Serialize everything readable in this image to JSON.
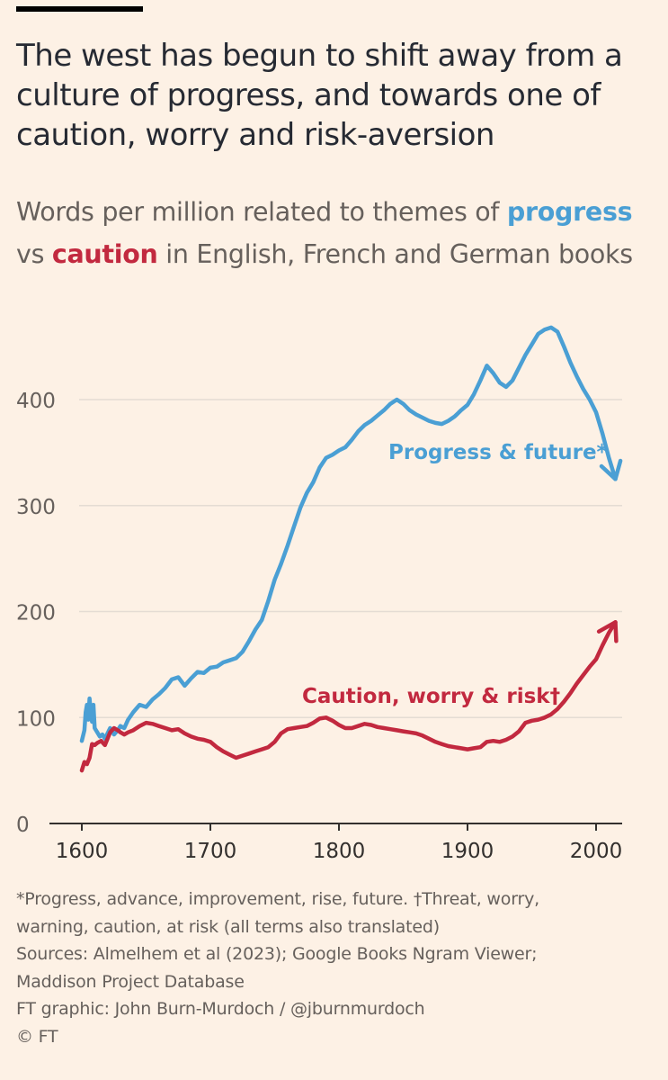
{
  "header": {
    "title": "The west has begun to shift away from a culture of progress, and towards one of caution, worry and risk-aversion",
    "subtitle_prefix": "Words per million related to themes of",
    "subtitle_progress": "progress",
    "subtitle_vs": "vs",
    "subtitle_caution": "caution",
    "subtitle_suffix": "in English, French and German books"
  },
  "colors": {
    "background": "#fdf1e5",
    "progress": "#4a9fd4",
    "caution": "#c2293f",
    "grid": "#e4dcd3",
    "axis": "#33302e",
    "tick_text": "#66605c"
  },
  "chart_data": {
    "type": "line",
    "xlim": [
      1600,
      2015
    ],
    "ylim": [
      0,
      470
    ],
    "x_ticks": [
      1600,
      1700,
      1800,
      1900,
      2000
    ],
    "y_ticks": [
      0,
      100,
      200,
      300,
      400
    ],
    "grid": "horizontal",
    "series": [
      {
        "name": "Progress & future*",
        "label_text": "Progress & future*",
        "color": "#4a9fd4",
        "points": [
          [
            1600,
            78
          ],
          [
            1602,
            88
          ],
          [
            1603,
            105
          ],
          [
            1604,
            112
          ],
          [
            1605,
            98
          ],
          [
            1606,
            118
          ],
          [
            1607,
            104
          ],
          [
            1608,
            96
          ],
          [
            1609,
            112
          ],
          [
            1610,
            90
          ],
          [
            1612,
            86
          ],
          [
            1614,
            82
          ],
          [
            1616,
            84
          ],
          [
            1618,
            80
          ],
          [
            1620,
            85
          ],
          [
            1622,
            90
          ],
          [
            1625,
            84
          ],
          [
            1628,
            88
          ],
          [
            1630,
            92
          ],
          [
            1633,
            90
          ],
          [
            1636,
            98
          ],
          [
            1640,
            105
          ],
          [
            1645,
            112
          ],
          [
            1650,
            110
          ],
          [
            1655,
            117
          ],
          [
            1660,
            122
          ],
          [
            1665,
            128
          ],
          [
            1670,
            136
          ],
          [
            1675,
            138
          ],
          [
            1680,
            130
          ],
          [
            1685,
            137
          ],
          [
            1690,
            143
          ],
          [
            1695,
            142
          ],
          [
            1700,
            147
          ],
          [
            1705,
            148
          ],
          [
            1710,
            152
          ],
          [
            1715,
            154
          ],
          [
            1720,
            156
          ],
          [
            1725,
            162
          ],
          [
            1730,
            172
          ],
          [
            1735,
            183
          ],
          [
            1740,
            192
          ],
          [
            1745,
            210
          ],
          [
            1750,
            230
          ],
          [
            1755,
            245
          ],
          [
            1760,
            262
          ],
          [
            1765,
            280
          ],
          [
            1770,
            298
          ],
          [
            1775,
            312
          ],
          [
            1780,
            322
          ],
          [
            1785,
            336
          ],
          [
            1790,
            345
          ],
          [
            1795,
            348
          ],
          [
            1800,
            352
          ],
          [
            1805,
            355
          ],
          [
            1810,
            362
          ],
          [
            1815,
            370
          ],
          [
            1820,
            376
          ],
          [
            1825,
            380
          ],
          [
            1830,
            385
          ],
          [
            1835,
            390
          ],
          [
            1840,
            396
          ],
          [
            1845,
            400
          ],
          [
            1850,
            396
          ],
          [
            1855,
            390
          ],
          [
            1860,
            386
          ],
          [
            1865,
            383
          ],
          [
            1870,
            380
          ],
          [
            1875,
            378
          ],
          [
            1880,
            377
          ],
          [
            1885,
            380
          ],
          [
            1890,
            384
          ],
          [
            1895,
            390
          ],
          [
            1900,
            395
          ],
          [
            1905,
            405
          ],
          [
            1910,
            418
          ],
          [
            1915,
            432
          ],
          [
            1920,
            425
          ],
          [
            1925,
            416
          ],
          [
            1930,
            412
          ],
          [
            1935,
            418
          ],
          [
            1940,
            430
          ],
          [
            1945,
            442
          ],
          [
            1950,
            452
          ],
          [
            1955,
            462
          ],
          [
            1960,
            466
          ],
          [
            1965,
            468
          ],
          [
            1970,
            464
          ],
          [
            1975,
            450
          ],
          [
            1980,
            435
          ],
          [
            1985,
            422
          ],
          [
            1990,
            410
          ],
          [
            1995,
            400
          ],
          [
            2000,
            388
          ],
          [
            2005,
            368
          ],
          [
            2010,
            345
          ],
          [
            2015,
            325
          ]
        ]
      },
      {
        "name": "Caution, worry & risk†",
        "label_text": "Caution, worry & risk†",
        "color": "#c2293f",
        "points": [
          [
            1600,
            50
          ],
          [
            1602,
            58
          ],
          [
            1604,
            56
          ],
          [
            1606,
            62
          ],
          [
            1608,
            75
          ],
          [
            1610,
            74
          ],
          [
            1612,
            76
          ],
          [
            1615,
            78
          ],
          [
            1618,
            74
          ],
          [
            1620,
            80
          ],
          [
            1622,
            86
          ],
          [
            1625,
            90
          ],
          [
            1628,
            88
          ],
          [
            1630,
            86
          ],
          [
            1633,
            84
          ],
          [
            1636,
            86
          ],
          [
            1640,
            88
          ],
          [
            1645,
            92
          ],
          [
            1650,
            95
          ],
          [
            1655,
            94
          ],
          [
            1660,
            92
          ],
          [
            1665,
            90
          ],
          [
            1670,
            88
          ],
          [
            1675,
            89
          ],
          [
            1680,
            85
          ],
          [
            1685,
            82
          ],
          [
            1690,
            80
          ],
          [
            1695,
            79
          ],
          [
            1700,
            77
          ],
          [
            1705,
            72
          ],
          [
            1710,
            68
          ],
          [
            1715,
            65
          ],
          [
            1720,
            62
          ],
          [
            1725,
            64
          ],
          [
            1730,
            66
          ],
          [
            1735,
            68
          ],
          [
            1740,
            70
          ],
          [
            1745,
            72
          ],
          [
            1750,
            77
          ],
          [
            1755,
            85
          ],
          [
            1760,
            89
          ],
          [
            1765,
            90
          ],
          [
            1770,
            91
          ],
          [
            1775,
            92
          ],
          [
            1780,
            95
          ],
          [
            1785,
            99
          ],
          [
            1790,
            100
          ],
          [
            1795,
            97
          ],
          [
            1800,
            93
          ],
          [
            1805,
            90
          ],
          [
            1810,
            90
          ],
          [
            1815,
            92
          ],
          [
            1820,
            94
          ],
          [
            1825,
            93
          ],
          [
            1830,
            91
          ],
          [
            1835,
            90
          ],
          [
            1840,
            89
          ],
          [
            1845,
            88
          ],
          [
            1850,
            87
          ],
          [
            1855,
            86
          ],
          [
            1860,
            85
          ],
          [
            1865,
            83
          ],
          [
            1870,
            80
          ],
          [
            1875,
            77
          ],
          [
            1880,
            75
          ],
          [
            1885,
            73
          ],
          [
            1890,
            72
          ],
          [
            1895,
            71
          ],
          [
            1900,
            70
          ],
          [
            1905,
            71
          ],
          [
            1910,
            72
          ],
          [
            1915,
            77
          ],
          [
            1920,
            78
          ],
          [
            1925,
            77
          ],
          [
            1930,
            79
          ],
          [
            1935,
            82
          ],
          [
            1940,
            87
          ],
          [
            1945,
            95
          ],
          [
            1950,
            97
          ],
          [
            1955,
            98
          ],
          [
            1960,
            100
          ],
          [
            1965,
            103
          ],
          [
            1970,
            108
          ],
          [
            1975,
            115
          ],
          [
            1980,
            123
          ],
          [
            1985,
            132
          ],
          [
            1990,
            140
          ],
          [
            1995,
            148
          ],
          [
            2000,
            155
          ],
          [
            2005,
            168
          ],
          [
            2010,
            180
          ],
          [
            2015,
            190
          ]
        ]
      }
    ]
  },
  "footnotes": {
    "line1": "*Progress, advance, improvement, rise, future. †Threat, worry,",
    "line2": "warning, caution, at risk (all terms also translated)",
    "line3": "Sources: Almelhem et al (2023); Google Books Ngram Viewer;",
    "line4": "Maddison Project Database",
    "line5": "FT graphic: John Burn-Murdoch / @jburnmurdoch",
    "line6": "© FT"
  }
}
